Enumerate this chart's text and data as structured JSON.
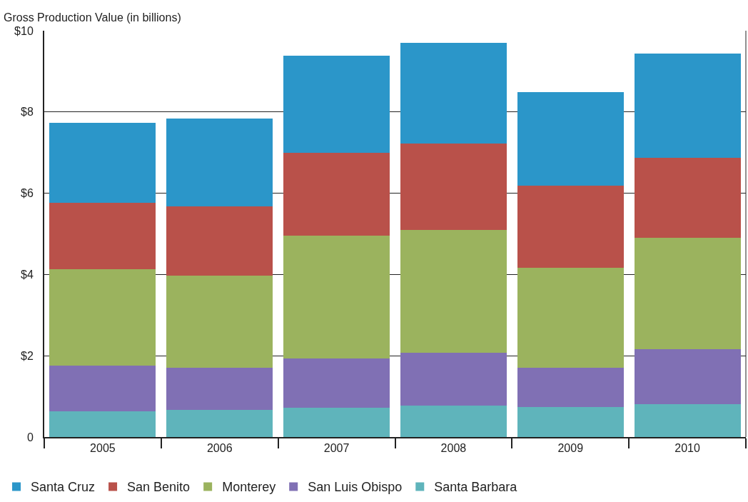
{
  "chart_data": {
    "type": "bar",
    "stacked": true,
    "ylabel": "Gross Production Value (in billions)",
    "categories": [
      "2005",
      "2006",
      "2007",
      "2008",
      "2009",
      "2010"
    ],
    "series": [
      {
        "name": "Santa Barbara",
        "color": "#5fb4bb",
        "values": [
          0.63,
          0.67,
          0.72,
          0.77,
          0.74,
          0.81
        ]
      },
      {
        "name": "San Luis Obispo",
        "color": "#8070b4",
        "values": [
          1.12,
          1.03,
          1.22,
          1.31,
          0.96,
          1.36
        ]
      },
      {
        "name": "Monterey",
        "color": "#9bb35e",
        "values": [
          2.38,
          2.28,
          3.02,
          3.02,
          2.47,
          2.73
        ]
      },
      {
        "name": "San Benito",
        "color": "#b9514a",
        "values": [
          1.63,
          1.69,
          2.03,
          2.13,
          2.01,
          1.97
        ]
      },
      {
        "name": "Santa Cruz",
        "color": "#2b96c9",
        "values": [
          1.98,
          2.16,
          2.4,
          2.47,
          2.31,
          2.57
        ]
      }
    ],
    "ylim": [
      0,
      10
    ],
    "yticks": [
      {
        "value": 0,
        "label": "0"
      },
      {
        "value": 2,
        "label": "$2"
      },
      {
        "value": 4,
        "label": "$4"
      },
      {
        "value": 6,
        "label": "$6"
      },
      {
        "value": 8,
        "label": "$8"
      },
      {
        "value": 10,
        "label": "$10"
      }
    ],
    "grid": "y",
    "legend": "bottom"
  }
}
